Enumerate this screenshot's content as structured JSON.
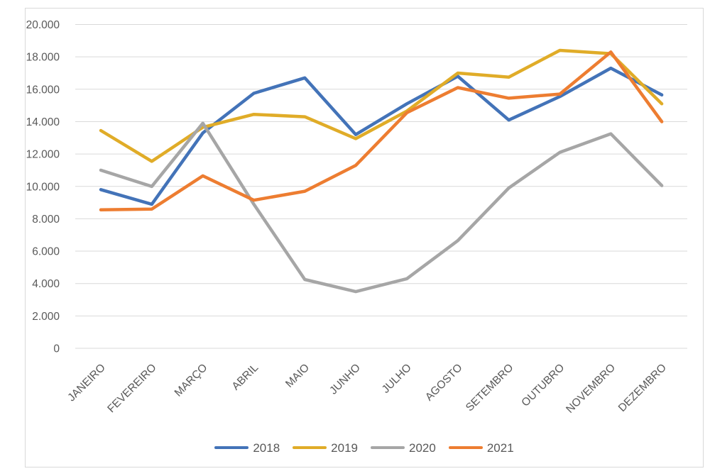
{
  "chart_data": {
    "type": "line",
    "title": "",
    "xlabel": "",
    "ylabel": "",
    "grid": "horizontal-only",
    "legend_position": "bottom-center",
    "background_color": "#ffffff",
    "border_color": "#d9d9d9",
    "gridline_color": "#d9d9d9",
    "text_color": "#595959",
    "ylim": [
      0,
      20000
    ],
    "y_ticks": [
      {
        "value": 0,
        "label": "0"
      },
      {
        "value": 2000,
        "label": "2.000"
      },
      {
        "value": 4000,
        "label": "4.000"
      },
      {
        "value": 6000,
        "label": "6.000"
      },
      {
        "value": 8000,
        "label": "8.000"
      },
      {
        "value": 10000,
        "label": "10.000"
      },
      {
        "value": 12000,
        "label": "12.000"
      },
      {
        "value": 14000,
        "label": "14.000"
      },
      {
        "value": 16000,
        "label": "16.000"
      },
      {
        "value": 18000,
        "label": "18.000"
      },
      {
        "value": 20000,
        "label": "20.000"
      }
    ],
    "categories": [
      "JANEIRO",
      "FEVEREIRO",
      "MARÇO",
      "ABRIL",
      "MAIO",
      "JUNHO",
      "JULHO",
      "AGOSTO",
      "SETEMBRO",
      "OUTUBRO",
      "NOVEMBRO",
      "DEZEMBRO"
    ],
    "series": [
      {
        "name": "2018",
        "color": "#4373b8",
        "values": [
          9800,
          8900,
          13300,
          15750,
          16700,
          13200,
          15100,
          16800,
          14100,
          15550,
          17300,
          15650
        ]
      },
      {
        "name": "2019",
        "color": "#e0ac28",
        "values": [
          13450,
          11550,
          13650,
          14450,
          14300,
          12950,
          14650,
          17000,
          16750,
          18400,
          18200,
          15100
        ]
      },
      {
        "name": "2020",
        "color": "#a6a6a6",
        "values": [
          11000,
          10000,
          13900,
          8900,
          4250,
          3500,
          4300,
          6650,
          9900,
          12100,
          13250,
          10050
        ]
      },
      {
        "name": "2021",
        "color": "#ed7d31",
        "values": [
          8550,
          8600,
          10650,
          9150,
          9700,
          11300,
          14550,
          16100,
          15450,
          15700,
          18300,
          14000
        ]
      }
    ]
  }
}
